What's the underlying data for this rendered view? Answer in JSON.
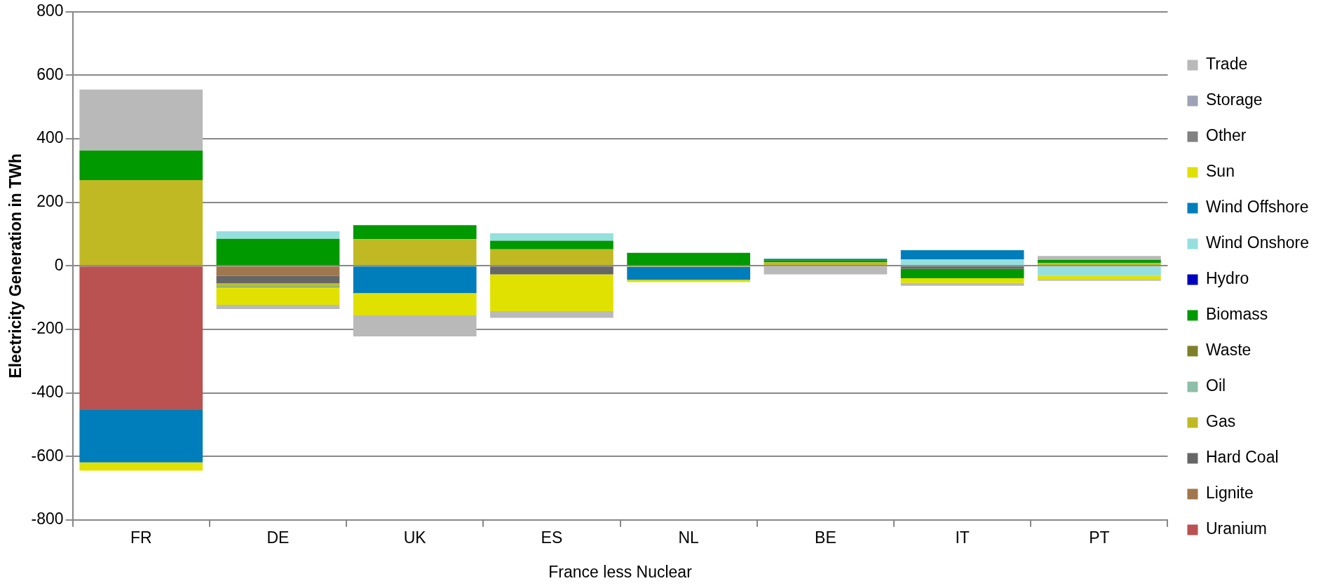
{
  "chart_data": {
    "type": "bar",
    "stacked": true,
    "xlabel": "France less Nuclear",
    "ylabel": "Electricity Generation in TWh",
    "categories": [
      "FR",
      "DE",
      "UK",
      "ES",
      "NL",
      "BE",
      "IT",
      "PT"
    ],
    "ylim": [
      -800,
      800
    ],
    "yticks": [
      -800,
      -600,
      -400,
      -200,
      0,
      200,
      400,
      600,
      800
    ],
    "grid": "y",
    "legend": "right",
    "series": [
      {
        "name": "Uranium",
        "color": "#b95250",
        "values": [
          -454,
          null,
          null,
          null,
          null,
          null,
          null,
          null
        ]
      },
      {
        "name": "Lignite",
        "color": "#a0764c",
        "values": [
          null,
          -32,
          null,
          null,
          null,
          null,
          null,
          null
        ]
      },
      {
        "name": "Hard Coal",
        "color": "#666666",
        "values": [
          null,
          -23,
          null,
          -27,
          null,
          null,
          -9,
          null
        ]
      },
      {
        "name": "Gas",
        "color": "#c0b923",
        "values": [
          270,
          -10,
          84,
          52,
          -3,
          11,
          null,
          9
        ]
      },
      {
        "name": "Oil",
        "color": "#8ebfa8",
        "values": [
          null,
          null,
          null,
          null,
          null,
          null,
          null,
          null
        ]
      },
      {
        "name": "Waste",
        "color": "#7f7f2a",
        "values": [
          null,
          null,
          null,
          null,
          null,
          null,
          null,
          null
        ]
      },
      {
        "name": "Biomass",
        "color": "#009900",
        "values": [
          93,
          85,
          44,
          27,
          41,
          7,
          -30,
          10
        ]
      },
      {
        "name": "Hydro",
        "color": "#0000c0",
        "values": [
          null,
          null,
          null,
          null,
          null,
          null,
          null,
          null
        ]
      },
      {
        "name": "Wind Onshore",
        "color": "#95dfdf",
        "values": [
          null,
          24,
          null,
          24,
          null,
          null,
          20,
          -32
        ]
      },
      {
        "name": "Wind Offshore",
        "color": "#007dbb",
        "values": [
          -165,
          -2,
          -86,
          null,
          -41,
          4,
          29,
          null
        ]
      },
      {
        "name": "Sun",
        "color": "#e1e100",
        "values": [
          -26,
          -56,
          -70,
          -116,
          -7,
          null,
          -15,
          -12
        ]
      },
      {
        "name": "Other",
        "color": "#808080",
        "values": [
          null,
          null,
          null,
          null,
          null,
          null,
          null,
          null
        ]
      },
      {
        "name": "Storage",
        "color": "#9fa1b5",
        "values": [
          null,
          null,
          null,
          null,
          null,
          null,
          null,
          -3
        ]
      },
      {
        "name": "Trade",
        "color": "#b9b9b9",
        "values": [
          192,
          -13,
          -66,
          -21,
          null,
          -27,
          -9,
          12
        ]
      }
    ]
  }
}
